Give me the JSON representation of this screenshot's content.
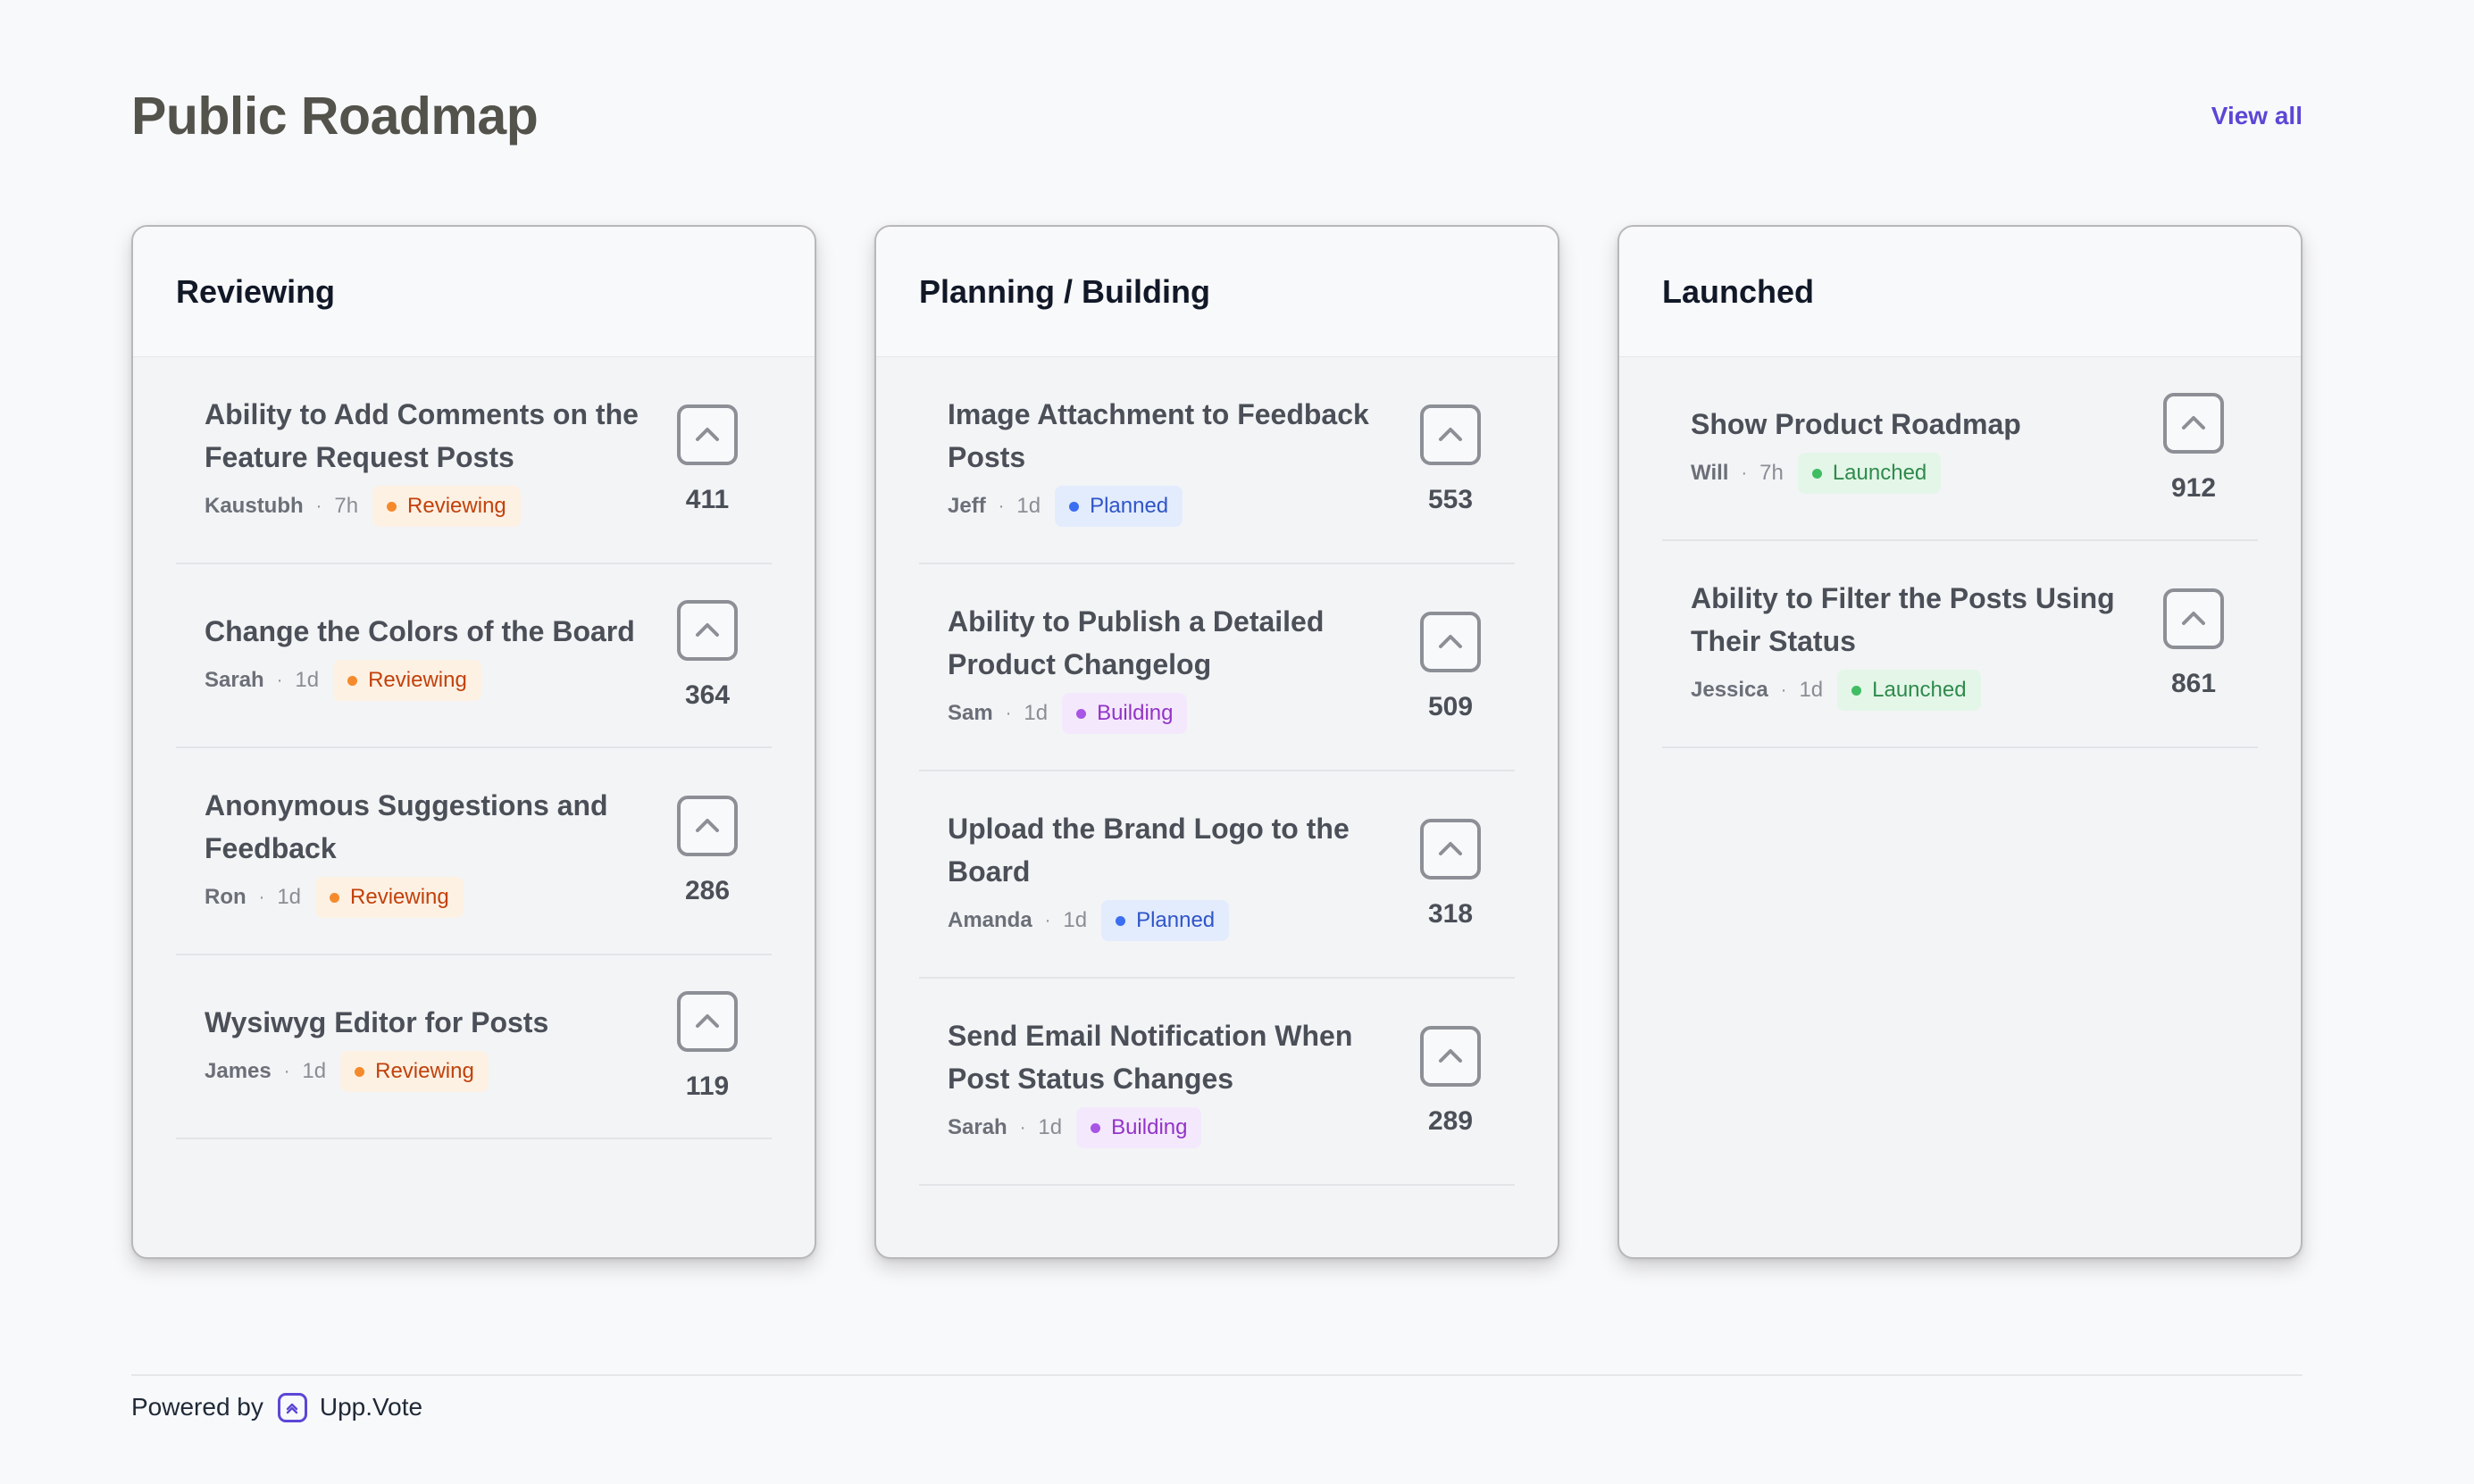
{
  "page": {
    "title": "Public Roadmap",
    "view_all": "View all"
  },
  "columns": [
    {
      "title": "Reviewing",
      "posts": [
        {
          "title": "Ability to Add Comments on the Feature Request Posts",
          "author": "Kaustubh",
          "age": "7h",
          "status": "Reviewing",
          "votes": "411"
        },
        {
          "title": "Change the Colors of the Board",
          "author": "Sarah",
          "age": "1d",
          "status": "Reviewing",
          "votes": "364"
        },
        {
          "title": "Anonymous Suggestions and Feedback",
          "author": "Ron",
          "age": "1d",
          "status": "Reviewing",
          "votes": "286"
        },
        {
          "title": "Wysiwyg Editor for Posts",
          "author": "James",
          "age": "1d",
          "status": "Reviewing",
          "votes": "119"
        }
      ]
    },
    {
      "title": "Planning / Building",
      "posts": [
        {
          "title": "Image Attachment to Feedback Posts",
          "author": "Jeff",
          "age": "1d",
          "status": "Planned",
          "votes": "553"
        },
        {
          "title": "Ability to Publish a Detailed Product Changelog",
          "author": "Sam",
          "age": "1d",
          "status": "Building",
          "votes": "509"
        },
        {
          "title": "Upload the Brand Logo to the Board",
          "author": "Amanda",
          "age": "1d",
          "status": "Planned",
          "votes": "318"
        },
        {
          "title": "Send Email Notification When Post Status Changes",
          "author": "Sarah",
          "age": "1d",
          "status": "Building",
          "votes": "289"
        }
      ]
    },
    {
      "title": "Launched",
      "posts": [
        {
          "title": "Show Product Roadmap",
          "author": "Will",
          "age": "7h",
          "status": "Launched",
          "votes": "912"
        },
        {
          "title": "Ability to Filter the Posts Using Their Status",
          "author": "Jessica",
          "age": "1d",
          "status": "Launched",
          "votes": "861"
        }
      ]
    }
  ],
  "separator": "·",
  "footer": {
    "powered_by": "Powered by",
    "brand": "Upp.Vote"
  },
  "icons": {
    "vote": "chevron-up-icon",
    "logo": "uppvote-logo-icon"
  },
  "colors": {
    "accent": "#5b47d6",
    "reviewing": "#f58a2c",
    "planned": "#3b6ef0",
    "building": "#a855e6",
    "launched": "#3fbd63"
  }
}
